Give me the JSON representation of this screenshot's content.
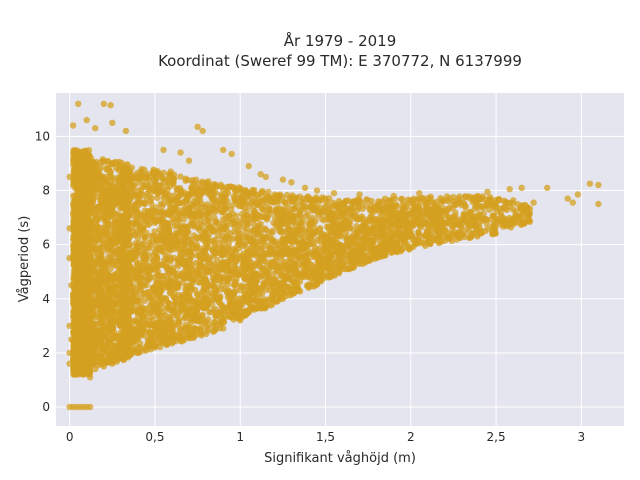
{
  "chart_data": {
    "type": "scatter",
    "title_line1": "År 1979 - 2019",
    "title_line2": "Koordinat (Sweref 99 TM): E 370772, N 6137999",
    "xlabel": "Signifikant våghöjd (m)",
    "ylabel": "Vågperiod (s)",
    "xlim": [
      -0.08,
      3.25
    ],
    "ylim": [
      -0.7,
      11.6
    ],
    "x_ticks": [
      0,
      0.5,
      1,
      1.5,
      2,
      2.5,
      3
    ],
    "x_tick_labels": [
      "0",
      "0,5",
      "1",
      "1,5",
      "2",
      "2,5",
      "3"
    ],
    "y_ticks": [
      0,
      2,
      4,
      6,
      8,
      10
    ],
    "y_tick_labels": [
      "0",
      "2",
      "4",
      "6",
      "8",
      "10"
    ],
    "grid": true,
    "legend": "none",
    "colors": {
      "marker": "#D4A020",
      "background": "#E5E5EF",
      "grid": "#ffffff"
    },
    "series": [
      {
        "points": [
          [
            0.0,
            0
          ],
          [
            0.02,
            0
          ],
          [
            0.04,
            0
          ],
          [
            0.06,
            0
          ],
          [
            0.08,
            0
          ],
          [
            0.1,
            0
          ],
          [
            0.12,
            0
          ],
          [
            0.05,
            11.2
          ],
          [
            0.2,
            11.2
          ],
          [
            0.24,
            11.15
          ],
          [
            0.02,
            10.4
          ],
          [
            0.1,
            10.6
          ],
          [
            0.15,
            10.3
          ],
          [
            0.25,
            10.5
          ],
          [
            0.33,
            10.2
          ],
          [
            0.75,
            10.35
          ],
          [
            0.78,
            10.2
          ],
          [
            0.55,
            9.5
          ],
          [
            0.65,
            9.4
          ],
          [
            0.9,
            9.5
          ],
          [
            0.95,
            9.35
          ],
          [
            0.7,
            9.1
          ],
          [
            1.05,
            8.9
          ],
          [
            1.12,
            8.6
          ],
          [
            1.15,
            8.5
          ],
          [
            1.25,
            8.4
          ],
          [
            1.3,
            8.3
          ],
          [
            1.38,
            8.1
          ],
          [
            1.45,
            8.0
          ],
          [
            1.55,
            7.9
          ],
          [
            1.7,
            7.85
          ],
          [
            1.9,
            7.8
          ],
          [
            2.05,
            7.9
          ],
          [
            2.25,
            7.75
          ],
          [
            2.45,
            7.95
          ],
          [
            2.58,
            8.05
          ],
          [
            2.65,
            8.1
          ],
          [
            2.8,
            8.1
          ],
          [
            2.92,
            7.7
          ],
          [
            2.98,
            7.85
          ],
          [
            3.05,
            8.25
          ],
          [
            3.1,
            8.2
          ],
          [
            3.1,
            7.5
          ],
          [
            2.95,
            7.55
          ],
          [
            2.72,
            7.55
          ],
          [
            2.6,
            7.3
          ],
          [
            2.55,
            6.85
          ],
          [
            0.0,
            1.6
          ],
          [
            0.0,
            2.0
          ],
          [
            0.01,
            2.5
          ],
          [
            0.0,
            3.0
          ],
          [
            0.01,
            4.5
          ],
          [
            0.0,
            5.5
          ],
          [
            0.0,
            6.6
          ],
          [
            0.0,
            8.5
          ],
          [
            0.05,
            1.5
          ],
          [
            0.08,
            1.2
          ],
          [
            0.12,
            1.1
          ],
          [
            0.1,
            1.3
          ],
          [
            0.15,
            1.4
          ],
          [
            0.06,
            1.8
          ],
          [
            0.2,
            1.5
          ],
          [
            0.25,
            1.6
          ],
          [
            0.3,
            1.8
          ],
          [
            0.35,
            1.9
          ],
          [
            0.4,
            2.0
          ],
          [
            0.45,
            2.1
          ],
          [
            0.5,
            2.2
          ],
          [
            0.6,
            2.35
          ],
          [
            0.7,
            2.55
          ],
          [
            0.8,
            2.7
          ],
          [
            0.9,
            2.9
          ],
          [
            1.0,
            3.2
          ],
          [
            1.05,
            3.5
          ],
          [
            1.15,
            3.7
          ],
          [
            1.25,
            4.0
          ],
          [
            1.4,
            4.5
          ],
          [
            1.55,
            4.9
          ],
          [
            1.7,
            5.3
          ],
          [
            1.85,
            5.6
          ],
          [
            2.0,
            5.9
          ],
          [
            2.15,
            6.15
          ],
          [
            2.3,
            6.4
          ],
          [
            2.45,
            6.6
          ],
          [
            2.6,
            6.85
          ]
        ],
        "bands": [
          {
            "x0": 0.02,
            "x1": 0.12,
            "low_start": 1.2,
            "low_end": 1.2,
            "high_start": 9.5,
            "high_end": 9.5,
            "n": 1500
          },
          {
            "x0": 0.05,
            "x1": 0.35,
            "low_start": 1.3,
            "low_end": 1.8,
            "high_start": 9.3,
            "high_end": 9.0,
            "n": 1400
          },
          {
            "x0": 0.3,
            "x1": 0.6,
            "low_start": 1.8,
            "low_end": 2.3,
            "high_start": 8.9,
            "high_end": 8.7,
            "n": 900
          },
          {
            "x0": 0.6,
            "x1": 0.85,
            "low_start": 2.3,
            "low_end": 2.8,
            "high_start": 8.6,
            "high_end": 8.3,
            "n": 650
          },
          {
            "x0": 0.85,
            "x1": 1.1,
            "low_start": 2.8,
            "low_end": 3.6,
            "high_start": 8.3,
            "high_end": 8.0,
            "n": 550
          },
          {
            "x0": 1.1,
            "x1": 1.35,
            "low_start": 3.5,
            "low_end": 4.3,
            "high_start": 8.0,
            "high_end": 7.8,
            "n": 450
          },
          {
            "x0": 1.35,
            "x1": 1.6,
            "low_start": 4.2,
            "low_end": 5.0,
            "high_start": 7.8,
            "high_end": 7.7,
            "n": 400
          },
          {
            "x0": 1.6,
            "x1": 1.9,
            "low_start": 5.0,
            "low_end": 5.7,
            "high_start": 7.7,
            "high_end": 7.7,
            "n": 380
          },
          {
            "x0": 1.9,
            "x1": 2.2,
            "low_start": 5.7,
            "low_end": 6.1,
            "high_start": 7.7,
            "high_end": 7.8,
            "n": 300
          },
          {
            "x0": 2.2,
            "x1": 2.5,
            "low_start": 6.1,
            "low_end": 6.4,
            "high_start": 7.8,
            "high_end": 7.8,
            "n": 200
          },
          {
            "x0": 2.5,
            "x1": 2.7,
            "low_start": 6.5,
            "low_end": 6.8,
            "high_start": 7.7,
            "high_end": 7.6,
            "n": 90
          }
        ]
      }
    ]
  }
}
